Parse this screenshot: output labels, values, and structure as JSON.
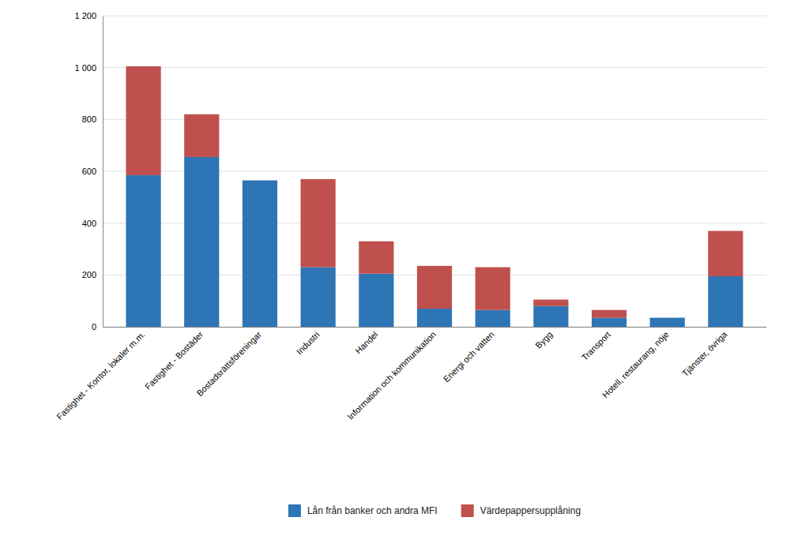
{
  "chart_data": {
    "type": "bar",
    "stacked": true,
    "categories": [
      "Fastighet - Kontor, lokaler m.m.",
      "Fastighet - Bostäder",
      "Bostadsrättsföreningar",
      "Industri",
      "Handel",
      "Information och kommunikation",
      "Energi och vatten",
      "Bygg",
      "Transport",
      "Hotell, restaurang, nöje",
      "Tjänster, övriga"
    ],
    "series": [
      {
        "name": "Lån från banker och andra MFI",
        "color": "#2E75B6",
        "values": [
          585,
          655,
          565,
          230,
          205,
          70,
          65,
          80,
          35,
          35,
          195
        ]
      },
      {
        "name": "Värdepappersupplåning",
        "color": "#C0504D",
        "values": [
          420,
          165,
          0,
          340,
          125,
          165,
          165,
          25,
          30,
          0,
          175
        ]
      }
    ],
    "ylim": [
      0,
      1200
    ],
    "yticks": [
      0,
      200,
      400,
      600,
      800,
      {
        "value": 1000,
        "label": "1 000"
      },
      {
        "value": 1200,
        "label": "1 200"
      }
    ],
    "grid": true,
    "legend": "bottom"
  }
}
